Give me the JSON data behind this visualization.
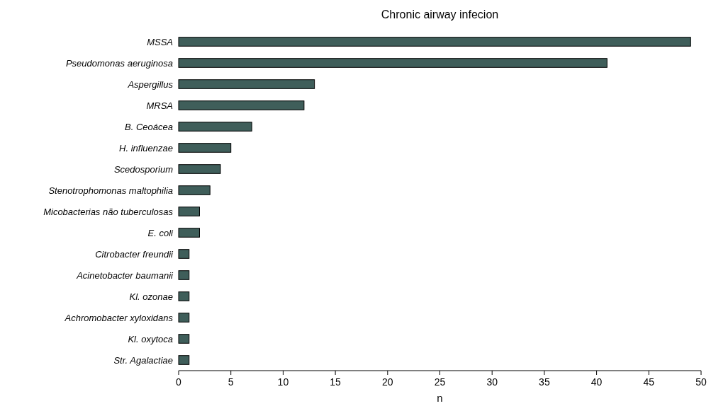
{
  "chart_data": {
    "type": "bar",
    "orientation": "horizontal",
    "title": "Chronic airway infecion",
    "xlabel": "n",
    "categories": [
      "MSSA",
      "Pseudomonas aeruginosa",
      "Aspergillus",
      "MRSA",
      "B. Ceoácea",
      "H. influenzae",
      "Scedosporium",
      "Stenotrophomonas maltophilia",
      "Micobacterias não tuberculosas",
      "E. coli",
      "Citrobacter freundii",
      "Acinetobacter baumanii",
      "Kl. ozonae",
      "Achromobacter xyloxidans",
      "Kl. oxytoca",
      "Str. Agalactiae"
    ],
    "values": [
      49,
      41,
      13,
      12,
      7,
      5,
      4,
      3,
      2,
      2,
      1,
      1,
      1,
      1,
      1,
      1
    ],
    "color": "#3f5e5a",
    "xlim": [
      0,
      50
    ],
    "xticks": [
      0,
      5,
      10,
      15,
      20,
      25,
      30,
      35,
      40,
      45,
      50
    ],
    "grid": false
  }
}
